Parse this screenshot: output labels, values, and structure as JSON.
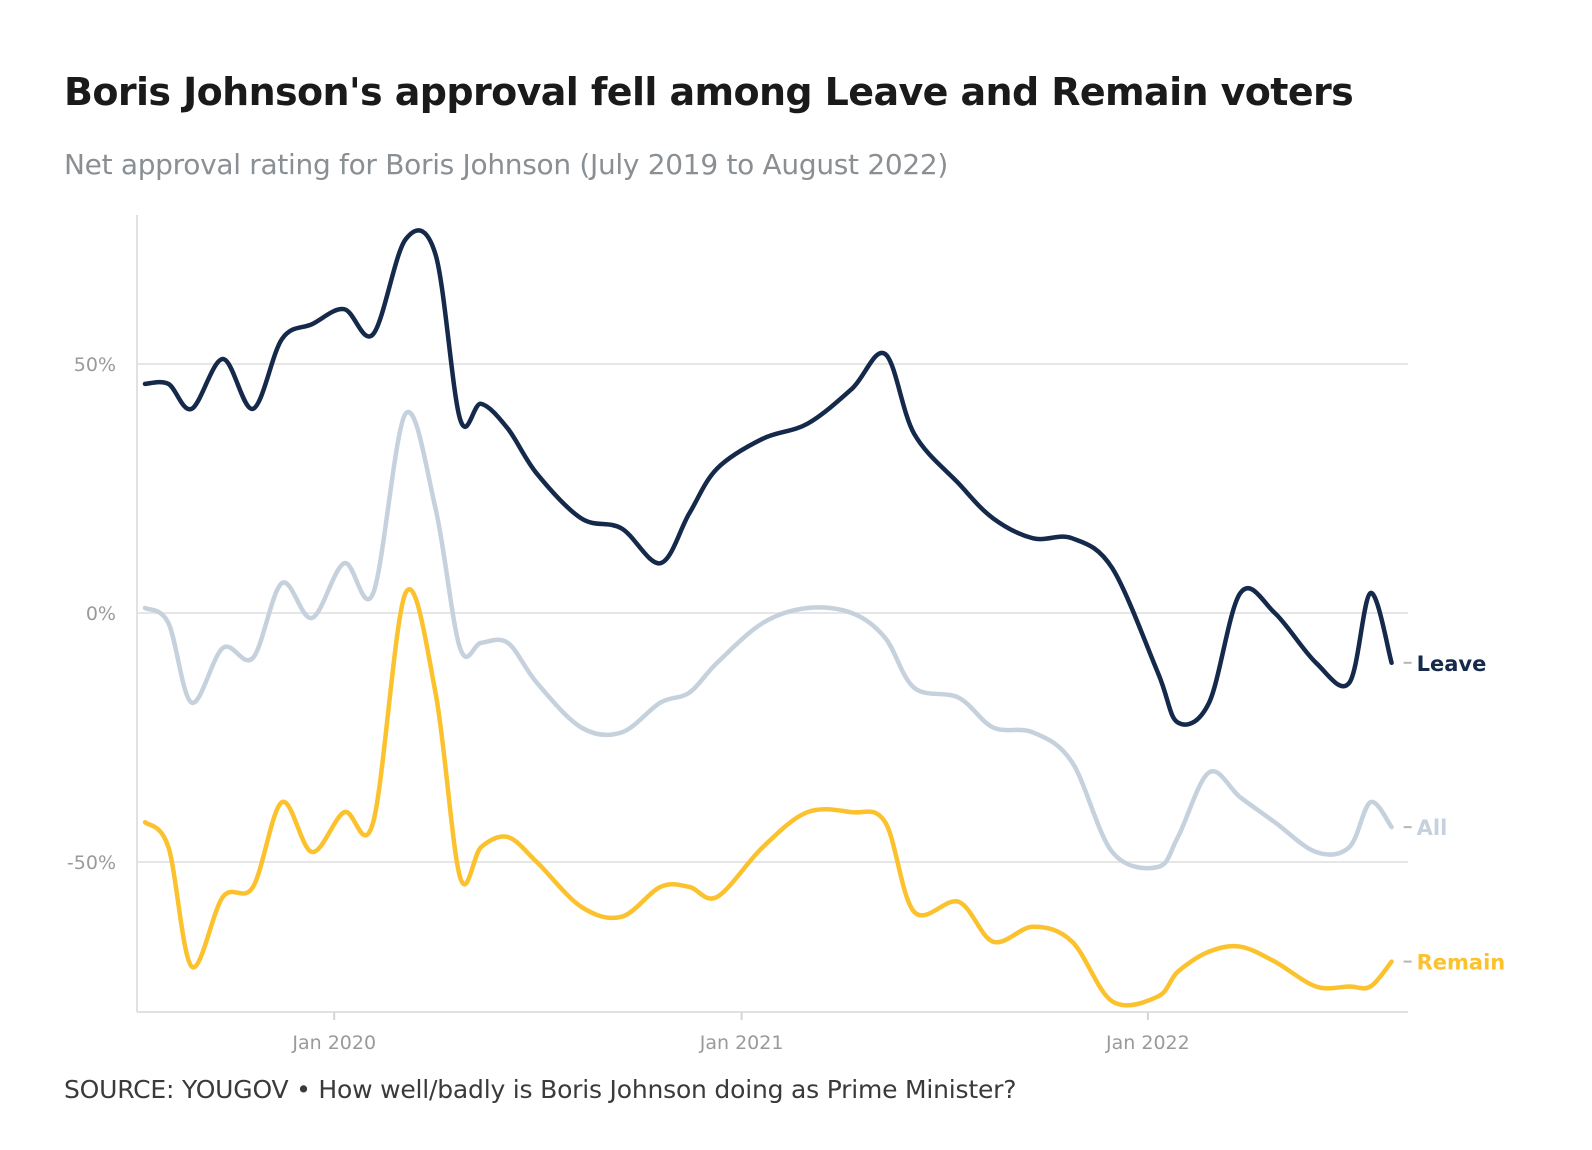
{
  "header": {
    "title": "Boris Johnson's approval fell among Leave and Remain voters",
    "subtitle": "Net approval rating for Boris Johnson (July 2019 to August 2022)"
  },
  "footer": {
    "source": "SOURCE: YOUGOV • How well/badly is Boris Johnson doing as Prime Minister?"
  },
  "chart_data": {
    "type": "line",
    "title": "Boris Johnson's approval fell among Leave and Remain voters",
    "subtitle": "Net approval rating for Boris Johnson (July 2019 to August 2022)",
    "xlabel": "",
    "ylabel": "",
    "xlim": [
      "2019-07-15",
      "2022-08-20"
    ],
    "ylim": [
      -80,
      80
    ],
    "grid": true,
    "legend": "inline-right",
    "x_ticks": [
      {
        "date": "2020-01-01",
        "label": "Jan 2020"
      },
      {
        "date": "2021-01-01",
        "label": "Jan 2021"
      },
      {
        "date": "2022-01-01",
        "label": "Jan 2022"
      }
    ],
    "y_ticks": [
      {
        "value": 50,
        "label": "50%"
      },
      {
        "value": 0,
        "label": "0%"
      },
      {
        "value": -50,
        "label": "-50%"
      }
    ],
    "x": [
      "2019-07-15",
      "2019-08-05",
      "2019-08-26",
      "2019-09-23",
      "2019-10-20",
      "2019-11-15",
      "2019-12-12",
      "2020-01-10",
      "2020-02-05",
      "2020-03-05",
      "2020-04-01",
      "2020-04-23",
      "2020-05-12",
      "2020-06-05",
      "2020-07-01",
      "2020-08-10",
      "2020-09-15",
      "2020-10-20",
      "2020-11-15",
      "2020-12-10",
      "2021-01-20",
      "2021-03-01",
      "2021-04-10",
      "2021-05-10",
      "2021-06-05",
      "2021-07-15",
      "2021-08-15",
      "2021-09-20",
      "2021-10-25",
      "2021-11-30",
      "2022-01-10",
      "2022-01-28",
      "2022-02-25",
      "2022-03-25",
      "2022-04-25",
      "2022-06-01",
      "2022-07-01",
      "2022-07-20",
      "2022-08-08"
    ],
    "series": [
      {
        "name": "Leave",
        "color": "#15294b",
        "values": [
          46,
          46,
          41,
          51,
          41,
          55,
          58,
          61,
          56,
          75,
          72,
          39,
          42,
          37,
          28,
          19,
          17,
          10,
          20,
          29,
          35,
          38,
          45,
          52,
          36,
          26,
          19,
          15,
          15,
          9,
          -12,
          -22,
          -18,
          4,
          0,
          -10,
          -14,
          4,
          -10
        ]
      },
      {
        "name": "All",
        "color": "#c5d1dc",
        "values": [
          1,
          -2,
          -18,
          -7,
          -9,
          6,
          -1,
          10,
          4,
          40,
          21,
          -7,
          -6,
          -6,
          -14,
          -23,
          -24,
          -18,
          -16,
          -10,
          -2,
          1,
          0,
          -5,
          -15,
          -17,
          -23,
          -24,
          -30,
          -48,
          -51,
          -45,
          -32,
          -37,
          -42,
          -48,
          -47,
          -38,
          -43
        ]
      },
      {
        "name": "Remain",
        "color": "#fcc22e",
        "values": [
          -42,
          -47,
          -71,
          -57,
          -55,
          -38,
          -48,
          -40,
          -42,
          4,
          -16,
          -53,
          -47,
          -45,
          -50,
          -59,
          -61,
          -55,
          -55,
          -57,
          -47,
          -40,
          -40,
          -42,
          -60,
          -58,
          -66,
          -63,
          -66,
          -78,
          -77,
          -72,
          -68,
          -67,
          -70,
          -75,
          -75,
          -75,
          -70
        ]
      }
    ]
  }
}
